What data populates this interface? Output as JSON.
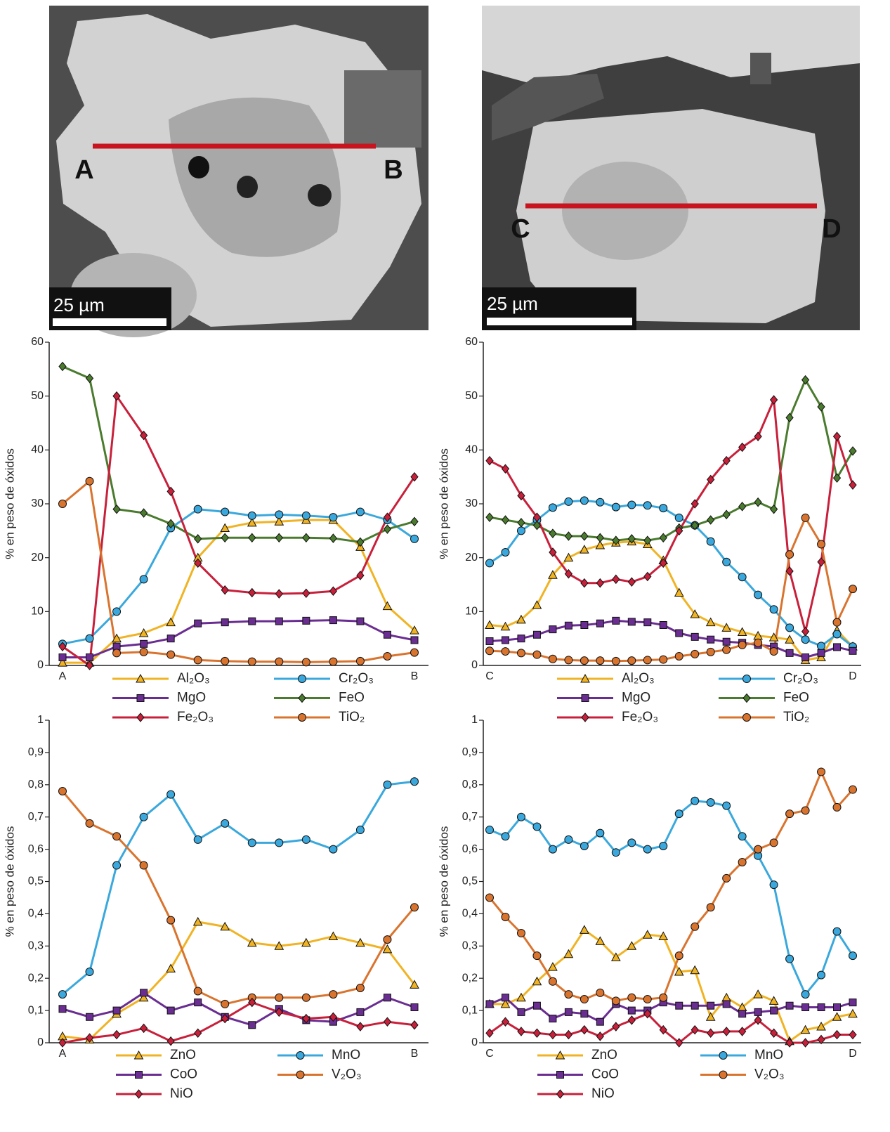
{
  "images": [
    {
      "labels": [
        "A",
        "B"
      ],
      "scale_bar": "25 µm"
    },
    {
      "labels": [
        "C",
        "D"
      ],
      "scale_bar": "25 µm"
    }
  ],
  "chart_data": [
    {
      "type": "line",
      "y_label": "% en peso de óxidos",
      "categories": [
        "A",
        null,
        null,
        null,
        null,
        null,
        null,
        null,
        null,
        null,
        null,
        null,
        null,
        "B"
      ],
      "ylim": [
        0,
        60
      ],
      "yticks": [
        0,
        10,
        20,
        30,
        40,
        50,
        60
      ],
      "series": [
        {
          "name": "Al₂O₃",
          "color": "#f0b323",
          "marker": "triangle",
          "values": [
            0.5,
            0.5,
            5,
            6,
            8,
            20,
            25.5,
            26.5,
            26.7,
            27,
            27,
            22,
            11,
            6.5
          ]
        },
        {
          "name": "Cr₂O₃",
          "color": "#3aa8dc",
          "marker": "circle",
          "values": [
            4,
            5,
            10,
            16,
            25.5,
            29,
            28.5,
            27.8,
            28,
            27.8,
            27.5,
            28.5,
            27,
            23.5
          ]
        },
        {
          "name": "MgO",
          "color": "#6a2d91",
          "marker": "square",
          "values": [
            1.5,
            1.5,
            3.5,
            4,
            5,
            7.8,
            8,
            8.2,
            8.2,
            8.3,
            8.4,
            8.2,
            5.7,
            4.7
          ]
        },
        {
          "name": "FeO",
          "color": "#4a7b2e",
          "marker": "diamond",
          "values": [
            55.5,
            53.3,
            29,
            28.3,
            26.3,
            23.5,
            23.7,
            23.7,
            23.7,
            23.7,
            23.6,
            22.9,
            25.3,
            26.7
          ]
        },
        {
          "name": "Fe₂O₃",
          "color": "#c8203b",
          "marker": "diamond",
          "values": [
            3.5,
            0,
            50,
            42.7,
            32.3,
            19,
            14,
            13.5,
            13.3,
            13.4,
            13.8,
            16.7,
            27.5,
            35
          ]
        },
        {
          "name": "TiO₂",
          "color": "#d9742f",
          "marker": "circle",
          "values": [
            30,
            34.2,
            2.3,
            2.5,
            2,
            1,
            0.8,
            0.7,
            0.7,
            0.6,
            0.7,
            0.8,
            1.7,
            2.4
          ]
        }
      ]
    },
    {
      "type": "line",
      "y_label": "% en peso de óxidos",
      "categories": [
        "C",
        null,
        null,
        null,
        null,
        null,
        null,
        null,
        null,
        null,
        null,
        null,
        null,
        null,
        null,
        null,
        null,
        null,
        null,
        null,
        null,
        null,
        null,
        "D"
      ],
      "ylim": [
        0,
        60
      ],
      "yticks": [
        0,
        10,
        20,
        30,
        40,
        50,
        60
      ],
      "series": [
        {
          "name": "Al₂O₃",
          "color": "#f0b323",
          "marker": "triangle",
          "values": [
            7.5,
            7.2,
            8.5,
            11.2,
            16.8,
            20,
            21.5,
            22.3,
            22.8,
            23,
            22.5,
            19.5,
            13.5,
            9.5,
            8,
            7,
            6.2,
            5.5,
            5.2,
            4.8,
            1,
            1.5,
            6.5,
            3.5
          ]
        },
        {
          "name": "Cr₂O₃",
          "color": "#3aa8dc",
          "marker": "circle",
          "values": [
            19,
            21,
            25,
            27,
            29.3,
            30.4,
            30.6,
            30.3,
            29.4,
            29.8,
            29.7,
            29.2,
            27.4,
            26,
            23,
            19.2,
            16.4,
            13.1,
            10.4,
            7,
            4.8,
            3.6,
            5.8,
            3.5
          ]
        },
        {
          "name": "MgO",
          "color": "#6a2d91",
          "marker": "square",
          "values": [
            4.5,
            4.7,
            5,
            5.7,
            6.7,
            7.4,
            7.5,
            7.8,
            8.3,
            8.1,
            8,
            7.5,
            6,
            5.3,
            4.8,
            4.4,
            4.2,
            3.8,
            3.5,
            2.3,
            1.5,
            2.3,
            3.4,
            2.7
          ]
        },
        {
          "name": "FeO",
          "color": "#4a7b2e",
          "marker": "diamond",
          "values": [
            27.5,
            27,
            26.5,
            26,
            24.5,
            24,
            24,
            23.7,
            23.2,
            23.5,
            23.2,
            23.7,
            25.5,
            26,
            27,
            28,
            29.5,
            30.3,
            29,
            46,
            53,
            48,
            34.8,
            39.8
          ]
        },
        {
          "name": "Fe₂O₃",
          "color": "#c8203b",
          "marker": "diamond",
          "values": [
            38,
            36.5,
            31.5,
            27.5,
            21,
            17,
            15.3,
            15.3,
            16,
            15.5,
            16.5,
            19,
            25,
            30,
            34.5,
            38,
            40.5,
            42.5,
            49.3,
            17.5,
            6.3,
            19.2,
            42.5,
            33.5
          ]
        },
        {
          "name": "TiO₂",
          "color": "#d9742f",
          "marker": "circle",
          "values": [
            2.7,
            2.6,
            2.3,
            2,
            1.2,
            1,
            0.9,
            0.9,
            0.8,
            0.9,
            1,
            1.1,
            1.7,
            2.1,
            2.5,
            2.9,
            3.8,
            4.2,
            2.6,
            20.6,
            27.4,
            22.5,
            8,
            14.2
          ]
        }
      ]
    },
    {
      "type": "line",
      "y_label": "% en peso de óxidos",
      "categories": [
        "A",
        null,
        null,
        null,
        null,
        null,
        null,
        null,
        null,
        null,
        null,
        null,
        null,
        "B"
      ],
      "ylim": [
        0,
        1
      ],
      "yticks": [
        0,
        {
          "value": 0.1,
          "label": "0,1"
        },
        {
          "value": 0.2,
          "label": "0,2"
        },
        {
          "value": 0.3,
          "label": "0,3"
        },
        {
          "value": 0.4,
          "label": "0,4"
        },
        {
          "value": 0.5,
          "label": "0,5"
        },
        {
          "value": 0.6,
          "label": "0,6"
        },
        {
          "value": 0.7,
          "label": "0,7"
        },
        {
          "value": 0.8,
          "label": "0,8"
        },
        {
          "value": 0.9,
          "label": "0,9"
        },
        1
      ],
      "series": [
        {
          "name": "ZnO",
          "color": "#f0b323",
          "marker": "triangle",
          "values": [
            0.02,
            0.01,
            0.09,
            0.14,
            0.23,
            0.375,
            0.36,
            0.31,
            0.3,
            0.31,
            0.33,
            0.31,
            0.29,
            0.18
          ]
        },
        {
          "name": "MnO",
          "color": "#3aa8dc",
          "marker": "circle",
          "values": [
            0.15,
            0.22,
            0.55,
            0.7,
            0.77,
            0.63,
            0.68,
            0.62,
            0.62,
            0.63,
            0.6,
            0.66,
            0.8,
            0.81
          ]
        },
        {
          "name": "CoO",
          "color": "#6a2d91",
          "marker": "square",
          "values": [
            0.105,
            0.08,
            0.1,
            0.155,
            0.1,
            0.125,
            0.08,
            0.055,
            0.105,
            0.07,
            0.065,
            0.095,
            0.14,
            0.11
          ]
        },
        {
          "name": "V₂O₃",
          "color": "#d9742f",
          "marker": "circle",
          "values": [
            0.78,
            0.68,
            0.64,
            0.55,
            0.38,
            0.16,
            0.12,
            0.14,
            0.14,
            0.14,
            0.15,
            0.17,
            0.32,
            0.42
          ]
        },
        {
          "name": "NiO",
          "color": "#c8203b",
          "marker": "diamond",
          "values": [
            0,
            0.015,
            0.025,
            0.045,
            0.005,
            0.03,
            0.075,
            0.125,
            0.095,
            0.075,
            0.08,
            0.05,
            0.065,
            0.055
          ]
        }
      ]
    },
    {
      "type": "line",
      "y_label": "% en peso de óxidos",
      "categories": [
        "C",
        null,
        null,
        null,
        null,
        null,
        null,
        null,
        null,
        null,
        null,
        null,
        null,
        null,
        null,
        null,
        null,
        null,
        null,
        null,
        null,
        null,
        null,
        "D"
      ],
      "ylim": [
        0,
        1
      ],
      "yticks": [
        0,
        {
          "value": 0.1,
          "label": "0,1"
        },
        {
          "value": 0.2,
          "label": "0,2"
        },
        {
          "value": 0.3,
          "label": "0,3"
        },
        {
          "value": 0.4,
          "label": "0,4"
        },
        {
          "value": 0.5,
          "label": "0,5"
        },
        {
          "value": 0.6,
          "label": "0,6"
        },
        {
          "value": 0.7,
          "label": "0,7"
        },
        {
          "value": 0.8,
          "label": "0,8"
        },
        {
          "value": 0.9,
          "label": "0,9"
        },
        1
      ],
      "series": [
        {
          "name": "ZnO",
          "color": "#f0b323",
          "marker": "triangle",
          "values": [
            0.12,
            0.12,
            0.14,
            0.19,
            0.235,
            0.275,
            0.35,
            0.315,
            0.265,
            0.3,
            0.335,
            0.33,
            0.22,
            0.225,
            0.08,
            0.14,
            0.11,
            0.15,
            0.13,
            0.005,
            0.04,
            0.05,
            0.08,
            0.09
          ]
        },
        {
          "name": "MnO",
          "color": "#3aa8dc",
          "marker": "circle",
          "values": [
            0.66,
            0.64,
            0.7,
            0.67,
            0.6,
            0.63,
            0.61,
            0.65,
            0.59,
            0.62,
            0.6,
            0.61,
            0.71,
            0.75,
            0.745,
            0.735,
            0.64,
            0.58,
            0.49,
            0.26,
            0.15,
            0.21,
            0.345,
            0.27
          ]
        },
        {
          "name": "CoO",
          "color": "#6a2d91",
          "marker": "square",
          "values": [
            0.12,
            0.14,
            0.095,
            0.115,
            0.075,
            0.095,
            0.09,
            0.065,
            0.12,
            0.1,
            0.1,
            0.125,
            0.115,
            0.115,
            0.115,
            0.12,
            0.09,
            0.095,
            0.1,
            0.115,
            0.11,
            0.11,
            0.11,
            0.125
          ]
        },
        {
          "name": "V₂O₃",
          "color": "#d9742f",
          "marker": "circle",
          "values": [
            0.45,
            0.39,
            0.34,
            0.27,
            0.19,
            0.15,
            0.135,
            0.155,
            0.13,
            0.14,
            0.135,
            0.14,
            0.27,
            0.36,
            0.42,
            0.51,
            0.56,
            0.6,
            0.62,
            0.71,
            0.72,
            0.84,
            0.73,
            0.785
          ]
        },
        {
          "name": "NiO",
          "color": "#c8203b",
          "marker": "diamond",
          "values": [
            0.03,
            0.065,
            0.035,
            0.03,
            0.025,
            0.025,
            0.04,
            0.02,
            0.05,
            0.07,
            0.09,
            0.04,
            0,
            0.04,
            0.03,
            0.035,
            0.035,
            0.07,
            0.03,
            0,
            0,
            0.01,
            0.025,
            0.025
          ]
        }
      ]
    }
  ]
}
